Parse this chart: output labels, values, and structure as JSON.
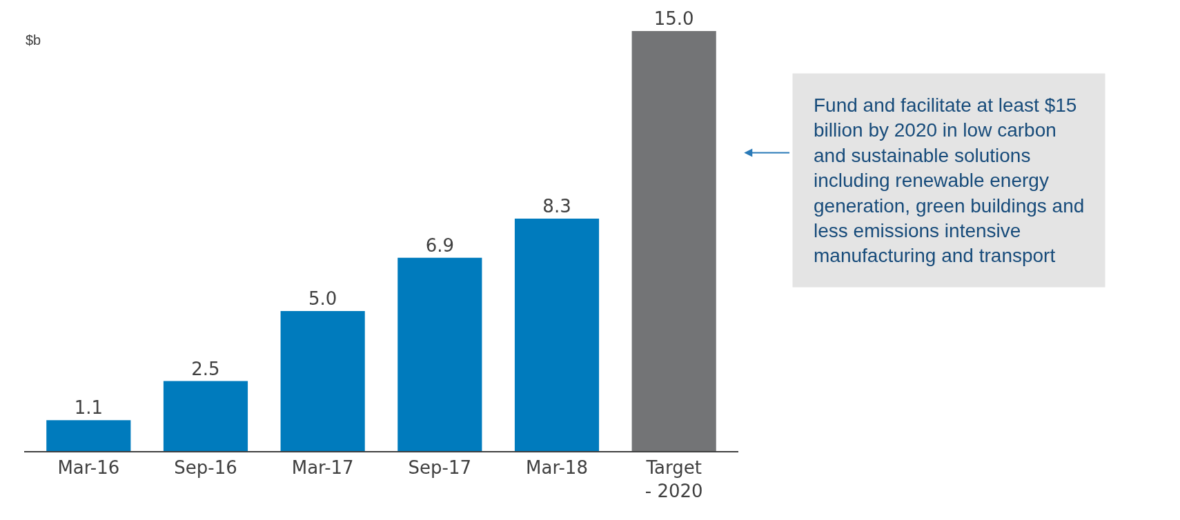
{
  "chart_data": {
    "type": "bar",
    "ylabel": "$b",
    "categories": [
      "Mar-16",
      "Sep-16",
      "Mar-17",
      "Sep-17",
      "Mar-18",
      "Target\n- 2020"
    ],
    "values": [
      1.1,
      2.5,
      5.0,
      6.9,
      8.3,
      15.0
    ],
    "value_labels": [
      "1.1",
      "2.5",
      "5.0",
      "6.9",
      "8.3",
      "15.0"
    ],
    "colors": [
      "#007bbd",
      "#007bbd",
      "#007bbd",
      "#007bbd",
      "#007bbd",
      "#737476"
    ],
    "annotations": [
      "Fund and facilitate at least $15 billion by 2020 in low carbon and sustainable solutions including renewable energy generation, green buildings and less emissions intensive manufacturing and transport"
    ]
  }
}
